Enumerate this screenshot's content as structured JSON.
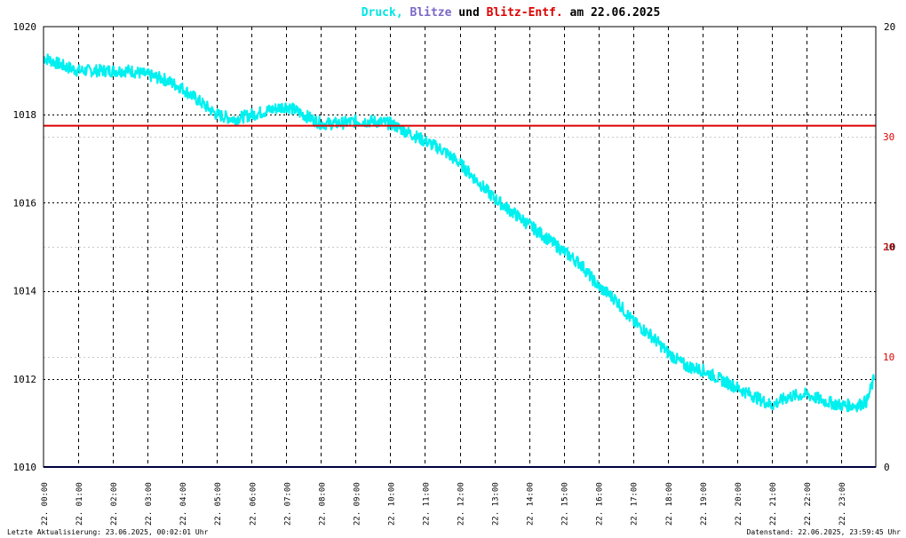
{
  "chart_data": {
    "type": "line",
    "title_parts": [
      {
        "text": "Druck,",
        "color": "#00e5e5"
      },
      {
        "text": "Blitze",
        "color": "#7b68c8"
      },
      {
        "text": "und",
        "color": "#000000"
      },
      {
        "text": "Blitz-Entf.",
        "color": "#dd0000"
      },
      {
        "text": "am 22.06.2025",
        "color": "#000000"
      }
    ],
    "y_left": {
      "min": 1010,
      "max": 1020,
      "ticks": [
        "1010",
        "1012",
        "1014",
        "1016",
        "1018",
        "1020"
      ]
    },
    "y_right_black": {
      "min": 0,
      "max": 20,
      "ticks": [
        "0",
        "10",
        "20"
      ]
    },
    "y_right_red": {
      "ticks": [
        "10",
        "20",
        "30"
      ],
      "color": "#dd0000"
    },
    "x_ticks": [
      "22. 00:00",
      "22. 01:00",
      "22. 02:00",
      "22. 03:00",
      "22. 04:00",
      "22. 05:00",
      "22. 06:00",
      "22. 07:00",
      "22. 08:00",
      "22. 09:00",
      "22. 10:00",
      "22. 11:00",
      "22. 12:00",
      "22. 13:00",
      "22. 14:00",
      "22. 15:00",
      "22. 16:00",
      "22. 17:00",
      "22. 18:00",
      "22. 19:00",
      "22. 20:00",
      "22. 21:00",
      "22. 22:00",
      "22. 23:00"
    ],
    "grid": true,
    "series": [
      {
        "name": "Druck",
        "color": "#00f0f0",
        "points": [
          [
            0,
            1019.3
          ],
          [
            0.3,
            1019.2
          ],
          [
            0.6,
            1019.1
          ],
          [
            1,
            1019.0
          ],
          [
            1.5,
            1019.0
          ],
          [
            2,
            1019.0
          ],
          [
            2.5,
            1019.0
          ],
          [
            3,
            1018.9
          ],
          [
            3.5,
            1018.8
          ],
          [
            4,
            1018.6
          ],
          [
            4.5,
            1018.3
          ],
          [
            5,
            1018.0
          ],
          [
            5.5,
            1017.9
          ],
          [
            6,
            1018.0
          ],
          [
            6.5,
            1018.1
          ],
          [
            7,
            1018.2
          ],
          [
            7.5,
            1018.0
          ],
          [
            8,
            1017.8
          ],
          [
            8.5,
            1017.8
          ],
          [
            9,
            1017.85
          ],
          [
            9.5,
            1017.85
          ],
          [
            10,
            1017.8
          ],
          [
            10.5,
            1017.6
          ],
          [
            11,
            1017.4
          ],
          [
            11.5,
            1017.2
          ],
          [
            12,
            1016.9
          ],
          [
            12.5,
            1016.5
          ],
          [
            13,
            1016.1
          ],
          [
            13.5,
            1015.8
          ],
          [
            14,
            1015.5
          ],
          [
            14.5,
            1015.2
          ],
          [
            15,
            1014.9
          ],
          [
            15.5,
            1014.6
          ],
          [
            16,
            1014.1
          ],
          [
            16.5,
            1013.8
          ],
          [
            17,
            1013.3
          ],
          [
            17.5,
            1013.0
          ],
          [
            18,
            1012.6
          ],
          [
            18.5,
            1012.3
          ],
          [
            19,
            1012.2
          ],
          [
            19.5,
            1012.0
          ],
          [
            20,
            1011.8
          ],
          [
            20.5,
            1011.6
          ],
          [
            21,
            1011.4
          ],
          [
            21.5,
            1011.6
          ],
          [
            22,
            1011.65
          ],
          [
            22.5,
            1011.5
          ],
          [
            23,
            1011.4
          ],
          [
            23.5,
            1011.4
          ],
          [
            23.75,
            1011.5
          ],
          [
            23.95,
            1012.0
          ]
        ]
      },
      {
        "name": "Blitz-Entf.",
        "color": "#dd0000",
        "constant_y_left": 1017.75
      },
      {
        "name": "Blitze",
        "color": "#000080",
        "constant_y_left": 1010
      }
    ]
  },
  "footer": {
    "left": "Letzte Aktualisierung: 23.06.2025, 00:02:01 Uhr",
    "right": "Datenstand: 22.06.2025, 23:59:45 Uhr"
  }
}
